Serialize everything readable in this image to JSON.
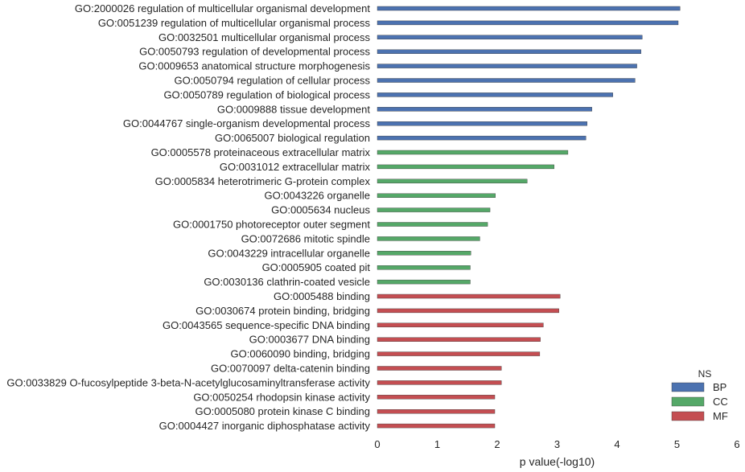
{
  "chart_data": {
    "type": "bar",
    "orientation": "horizontal",
    "xlabel": "p value(-log10)",
    "ylabel": "",
    "title": "",
    "xlim": [
      0,
      6
    ],
    "xticks": [
      "0",
      "1",
      "2",
      "3",
      "4",
      "5",
      "6"
    ],
    "grid": false,
    "legend": {
      "title": "NS",
      "position": "bottom-right",
      "entries": [
        "BP",
        "CC",
        "MF"
      ]
    },
    "series_colors": {
      "BP": "#4c72b0",
      "CC": "#55a868",
      "MF": "#c44e52"
    },
    "bars": [
      {
        "label": "GO:2000026 regulation of multicellular organismal development",
        "value": 5.05,
        "ns": "BP"
      },
      {
        "label": "GO:0051239 regulation of multicellular organismal process",
        "value": 5.02,
        "ns": "BP"
      },
      {
        "label": "GO:0032501 multicellular organismal process",
        "value": 4.42,
        "ns": "BP"
      },
      {
        "label": "GO:0050793 regulation of developmental process",
        "value": 4.4,
        "ns": "BP"
      },
      {
        "label": "GO:0009653 anatomical structure morphogenesis",
        "value": 4.33,
        "ns": "BP"
      },
      {
        "label": "GO:0050794 regulation of cellular process",
        "value": 4.3,
        "ns": "BP"
      },
      {
        "label": "GO:0050789 regulation of biological process",
        "value": 3.93,
        "ns": "BP"
      },
      {
        "label": "GO:0009888 tissue development",
        "value": 3.58,
        "ns": "BP"
      },
      {
        "label": "GO:0044767 single-organism developmental process",
        "value": 3.5,
        "ns": "BP"
      },
      {
        "label": "GO:0065007 biological regulation",
        "value": 3.48,
        "ns": "BP"
      },
      {
        "label": "GO:0005578 proteinaceous extracellular matrix",
        "value": 3.18,
        "ns": "CC"
      },
      {
        "label": "GO:0031012 extracellular matrix",
        "value": 2.95,
        "ns": "CC"
      },
      {
        "label": "GO:0005834 heterotrimeric G-protein complex",
        "value": 2.5,
        "ns": "CC"
      },
      {
        "label": "GO:0043226 organelle",
        "value": 1.97,
        "ns": "CC"
      },
      {
        "label": "GO:0005634 nucleus",
        "value": 1.88,
        "ns": "CC"
      },
      {
        "label": "GO:0001750 photoreceptor outer segment",
        "value": 1.84,
        "ns": "CC"
      },
      {
        "label": "GO:0072686 mitotic spindle",
        "value": 1.71,
        "ns": "CC"
      },
      {
        "label": "GO:0043229 intracellular organelle",
        "value": 1.56,
        "ns": "CC"
      },
      {
        "label": "GO:0005905 coated pit",
        "value": 1.55,
        "ns": "CC"
      },
      {
        "label": "GO:0030136 clathrin-coated vesicle",
        "value": 1.55,
        "ns": "CC"
      },
      {
        "label": "GO:0005488 binding",
        "value": 3.05,
        "ns": "MF"
      },
      {
        "label": "GO:0030674 protein binding, bridging",
        "value": 3.03,
        "ns": "MF"
      },
      {
        "label": "GO:0043565 sequence-specific DNA binding",
        "value": 2.77,
        "ns": "MF"
      },
      {
        "label": "GO:0003677 DNA binding",
        "value": 2.72,
        "ns": "MF"
      },
      {
        "label": "GO:0060090 binding, bridging",
        "value": 2.71,
        "ns": "MF"
      },
      {
        "label": "GO:0070097 delta-catenin binding",
        "value": 2.07,
        "ns": "MF"
      },
      {
        "label": "GO:0033829 O-fucosylpeptide 3-beta-N-acetylglucosaminyltransferase activity",
        "value": 2.07,
        "ns": "MF"
      },
      {
        "label": "GO:0050254 rhodopsin kinase activity",
        "value": 1.96,
        "ns": "MF"
      },
      {
        "label": "GO:0005080 protein kinase C binding",
        "value": 1.96,
        "ns": "MF"
      },
      {
        "label": "GO:0004427 inorganic diphosphatase activity",
        "value": 1.96,
        "ns": "MF"
      }
    ]
  }
}
